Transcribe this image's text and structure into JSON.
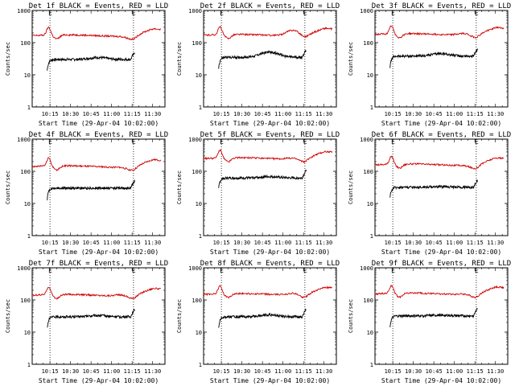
{
  "chart_data": [
    {
      "type": "line",
      "title": "Det 1f BLACK = Events, RED = LLD",
      "ylabel": "Counts/sec",
      "xlabel": "Start Time (29-Apr-04 10:02:00)",
      "yscale": "log",
      "ylim": [
        1,
        1000
      ],
      "xlim": [
        "10:02",
        "11:39"
      ],
      "x_tick_labels": [
        "10:15",
        "10:30",
        "10:45",
        "11:00",
        "11:15",
        "11:30"
      ],
      "y_tick_labels": [
        "1",
        "10",
        "100",
        "1000"
      ],
      "markers": [
        {
          "label": "E",
          "at": "10:15"
        },
        {
          "label": "E",
          "at": "11:16"
        }
      ],
      "series": [
        {
          "color": "#000000",
          "start": "10:13",
          "end": "11:17",
          "base": 30,
          "shape": "events",
          "bump": 0.15
        },
        {
          "color": "#d00000",
          "start": "10:02",
          "end": "11:36",
          "base": 165,
          "shape": "lld",
          "bump": 0.0
        }
      ]
    },
    {
      "type": "line",
      "title": "Det 2f BLACK = Events, RED = LLD",
      "ylabel": "Counts/sec",
      "xlabel": "Start Time (29-Apr-04 10:02:00)",
      "yscale": "log",
      "ylim": [
        1,
        1000
      ],
      "xlim": [
        "10:02",
        "11:39"
      ],
      "x_tick_labels": [
        "10:15",
        "10:30",
        "10:45",
        "11:00",
        "11:15",
        "11:30"
      ],
      "y_tick_labels": [
        "1",
        "10",
        "100",
        "1000"
      ],
      "markers": [
        {
          "label": "E",
          "at": "10:15"
        },
        {
          "label": "E",
          "at": "11:16"
        }
      ],
      "series": [
        {
          "color": "#000000",
          "start": "10:13",
          "end": "11:17",
          "base": 35,
          "shape": "events",
          "bump": 0.45
        },
        {
          "color": "#d00000",
          "start": "10:02",
          "end": "11:36",
          "base": 170,
          "shape": "lld",
          "bump": 0.55
        }
      ]
    },
    {
      "type": "line",
      "title": "Det 3f BLACK = Events, RED = LLD",
      "ylabel": "Counts/sec",
      "xlabel": "Start Time (29-Apr-04 10:02:00)",
      "yscale": "log",
      "ylim": [
        1,
        1000
      ],
      "xlim": [
        "10:02",
        "11:39"
      ],
      "x_tick_labels": [
        "10:15",
        "10:30",
        "10:45",
        "11:00",
        "11:15",
        "11:30"
      ],
      "y_tick_labels": [
        "1",
        "10",
        "100",
        "1000"
      ],
      "markers": [
        {
          "label": "E",
          "at": "10:15"
        },
        {
          "label": "E",
          "at": "11:16"
        }
      ],
      "series": [
        {
          "color": "#000000",
          "start": "10:13",
          "end": "11:17",
          "base": 38,
          "shape": "events",
          "bump": 0.2
        },
        {
          "color": "#d00000",
          "start": "10:02",
          "end": "11:36",
          "base": 180,
          "shape": "lld",
          "bump": 0.15
        }
      ]
    },
    {
      "type": "line",
      "title": "Det 4f BLACK = Events, RED = LLD",
      "ylabel": "Counts/sec",
      "xlabel": "Start Time (29-Apr-04 10:02:00)",
      "yscale": "log",
      "ylim": [
        1,
        1000
      ],
      "xlim": [
        "10:02",
        "11:39"
      ],
      "x_tick_labels": [
        "10:15",
        "10:30",
        "10:45",
        "11:00",
        "11:15",
        "11:30"
      ],
      "y_tick_labels": [
        "1",
        "10",
        "100",
        "1000"
      ],
      "markers": [
        {
          "label": "E",
          "at": "10:15"
        },
        {
          "label": "E",
          "at": "11:16"
        }
      ],
      "series": [
        {
          "color": "#000000",
          "start": "10:13",
          "end": "11:17",
          "base": 30,
          "shape": "events",
          "bump": 0.0
        },
        {
          "color": "#d00000",
          "start": "10:02",
          "end": "11:36",
          "base": 140,
          "shape": "lld",
          "bump": 0.0
        }
      ]
    },
    {
      "type": "line",
      "title": "Det 5f BLACK = Events, RED = LLD",
      "ylabel": "Counts/sec",
      "xlabel": "Start Time (29-Apr-04 10:02:00)",
      "yscale": "log",
      "ylim": [
        1,
        1000
      ],
      "xlim": [
        "10:02",
        "11:39"
      ],
      "x_tick_labels": [
        "10:15",
        "10:30",
        "10:45",
        "11:00",
        "11:15",
        "11:30"
      ],
      "y_tick_labels": [
        "1",
        "10",
        "100",
        "1000"
      ],
      "markers": [
        {
          "label": "E",
          "at": "10:15"
        },
        {
          "label": "E",
          "at": "11:16"
        }
      ],
      "series": [
        {
          "color": "#000000",
          "start": "10:13",
          "end": "11:17",
          "base": 62,
          "shape": "events",
          "bump": 0.1
        },
        {
          "color": "#d00000",
          "start": "10:02",
          "end": "11:36",
          "base": 250,
          "shape": "lld",
          "bump": 0.1
        }
      ]
    },
    {
      "type": "line",
      "title": "Det 6f BLACK = Events, RED = LLD",
      "ylabel": "Counts/sec",
      "xlabel": "Start Time (29-Apr-04 10:02:00)",
      "yscale": "log",
      "ylim": [
        1,
        1000
      ],
      "xlim": [
        "10:02",
        "11:39"
      ],
      "x_tick_labels": [
        "10:15",
        "10:30",
        "10:45",
        "11:00",
        "11:15",
        "11:30"
      ],
      "y_tick_labels": [
        "1",
        "10",
        "100",
        "1000"
      ],
      "markers": [
        {
          "label": "E",
          "at": "10:15"
        },
        {
          "label": "E",
          "at": "11:16"
        }
      ],
      "series": [
        {
          "color": "#000000",
          "start": "10:13",
          "end": "11:17",
          "base": 32,
          "shape": "events",
          "bump": 0.05
        },
        {
          "color": "#d00000",
          "start": "10:02",
          "end": "11:36",
          "base": 160,
          "shape": "lld",
          "bump": 0.0
        }
      ]
    },
    {
      "type": "line",
      "title": "Det 7f BLACK = Events, RED = LLD",
      "ylabel": "Counts/sec",
      "xlabel": "Start Time (29-Apr-04 10:02:00)",
      "yscale": "log",
      "ylim": [
        1,
        1000
      ],
      "xlim": [
        "10:02",
        "11:39"
      ],
      "x_tick_labels": [
        "10:15",
        "10:30",
        "10:45",
        "11:00",
        "11:15",
        "11:30"
      ],
      "y_tick_labels": [
        "1",
        "10",
        "100",
        "1000"
      ],
      "markers": [
        {
          "label": "E",
          "at": "10:15"
        },
        {
          "label": "E",
          "at": "11:16"
        }
      ],
      "series": [
        {
          "color": "#000000",
          "start": "10:13",
          "end": "11:17",
          "base": 30,
          "shape": "events",
          "bump": 0.1
        },
        {
          "color": "#d00000",
          "start": "10:02",
          "end": "11:36",
          "base": 140,
          "shape": "lld",
          "bump": 0.1
        }
      ]
    },
    {
      "type": "line",
      "title": "Det 8f BLACK = Events, RED = LLD",
      "ylabel": "Counts/sec",
      "xlabel": "Start Time (29-Apr-04 10:02:00)",
      "yscale": "log",
      "ylim": [
        1,
        1000
      ],
      "xlim": [
        "10:02",
        "11:39"
      ],
      "x_tick_labels": [
        "10:15",
        "10:30",
        "10:45",
        "11:00",
        "11:15",
        "11:30"
      ],
      "y_tick_labels": [
        "1",
        "10",
        "100",
        "1000"
      ],
      "markers": [
        {
          "label": "E",
          "at": "10:15"
        },
        {
          "label": "E",
          "at": "11:16"
        }
      ],
      "series": [
        {
          "color": "#000000",
          "start": "10:13",
          "end": "11:17",
          "base": 30,
          "shape": "events",
          "bump": 0.15
        },
        {
          "color": "#d00000",
          "start": "10:02",
          "end": "11:36",
          "base": 150,
          "shape": "lld",
          "bump": 0.15
        }
      ]
    },
    {
      "type": "line",
      "title": "Det 9f BLACK = Events, RED = LLD",
      "ylabel": "Counts/sec",
      "xlabel": "Start Time (29-Apr-04 10:02:00)",
      "yscale": "log",
      "ylim": [
        1,
        1000
      ],
      "xlim": [
        "10:02",
        "11:39"
      ],
      "x_tick_labels": [
        "10:15",
        "10:30",
        "10:45",
        "11:00",
        "11:15",
        "11:30"
      ],
      "y_tick_labels": [
        "1",
        "10",
        "100",
        "1000"
      ],
      "markers": [
        {
          "label": "E",
          "at": "10:15"
        },
        {
          "label": "E",
          "at": "11:16"
        }
      ],
      "series": [
        {
          "color": "#000000",
          "start": "10:13",
          "end": "11:17",
          "base": 32,
          "shape": "events",
          "bump": 0.05
        },
        {
          "color": "#d00000",
          "start": "10:02",
          "end": "11:36",
          "base": 155,
          "shape": "lld",
          "bump": 0.05
        }
      ]
    }
  ]
}
